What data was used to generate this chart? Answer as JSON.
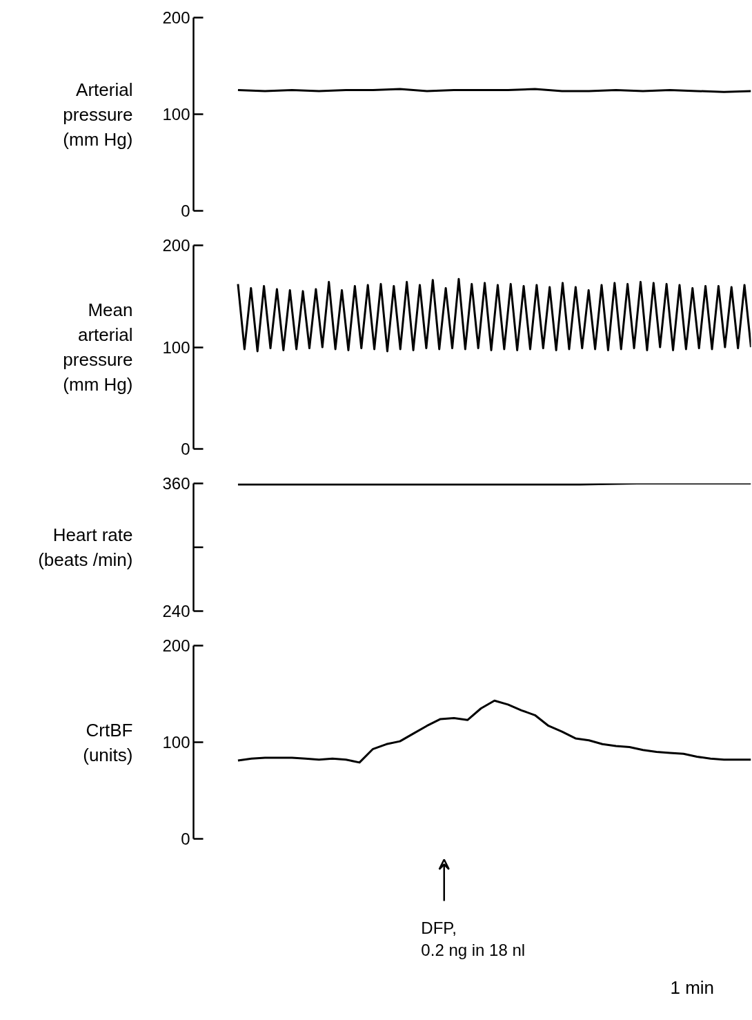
{
  "chart_data": [
    {
      "type": "line",
      "ylabel": "Arterial\npressure\n(mm Hg)",
      "categories": [
        null,
        null,
        null,
        null,
        null,
        null,
        null,
        null,
        null,
        null,
        null,
        null,
        null,
        null,
        null,
        null,
        null,
        null,
        null,
        null
      ],
      "series": [
        {
          "color": "#000000",
          "values": [
            125,
            124,
            125,
            124,
            125,
            125,
            126,
            124,
            125,
            125,
            125,
            126,
            124,
            124,
            125,
            124,
            125,
            124,
            123,
            124
          ]
        }
      ],
      "ylim": [
        0,
        200
      ],
      "yticks": [
        0,
        100,
        200
      ],
      "tick_labels": "y",
      "grid": false,
      "marker": "none",
      "line_style": "solid"
    },
    {
      "type": "line",
      "ylabel": "Mean\narterial\npressure\n(mm Hg)",
      "categories": [
        null,
        null,
        null,
        null,
        null,
        null,
        null,
        null,
        null,
        null,
        null,
        null,
        null,
        null,
        null,
        null,
        null,
        null,
        null,
        null,
        null,
        null,
        null,
        null,
        null,
        null,
        null,
        null,
        null,
        null,
        null,
        null,
        null,
        null,
        null,
        null,
        null,
        null,
        null,
        null,
        null,
        null,
        null,
        null,
        null,
        null,
        null,
        null,
        null,
        null,
        null,
        null,
        null,
        null,
        null,
        null,
        null,
        null,
        null,
        null,
        null,
        null,
        null,
        null,
        null,
        null,
        null,
        null,
        null,
        null,
        null,
        null,
        null,
        null,
        null,
        null,
        null,
        null,
        null,
        null
      ],
      "series": [
        {
          "color": "#000000",
          "values": [
            162,
            98,
            158,
            96,
            160,
            99,
            157,
            97,
            156,
            98,
            155,
            99,
            157,
            100,
            164,
            98,
            156,
            97,
            160,
            99,
            161,
            98,
            162,
            96,
            160,
            98,
            164,
            97,
            161,
            99,
            166,
            98,
            158,
            99,
            167,
            98,
            162,
            99,
            163,
            97,
            161,
            98,
            162,
            97,
            160,
            98,
            161,
            99,
            159,
            97,
            163,
            98,
            159,
            99,
            156,
            98,
            161,
            97,
            163,
            98,
            162,
            99,
            164,
            97,
            163,
            100,
            162,
            97,
            161,
            98,
            158,
            99,
            160,
            98,
            160,
            100,
            159,
            99,
            161,
            100
          ]
        }
      ],
      "ylim": [
        0,
        200
      ],
      "yticks": [
        0,
        100,
        200
      ],
      "tick_labels": "y",
      "grid": false,
      "marker": "none",
      "line_style": "solid"
    },
    {
      "type": "line",
      "ylabel": "Heart rate\n(beats /min)",
      "categories": [
        null,
        null,
        null,
        null,
        null,
        null,
        null,
        null,
        null,
        null
      ],
      "series": [
        {
          "color": "#000000",
          "values": [
            359,
            359,
            359,
            359,
            359,
            359,
            359,
            360,
            360,
            360
          ]
        }
      ],
      "ylim": [
        240,
        360
      ],
      "yticks": [
        240,
        {
          "value": 300,
          "label": null
        },
        360
      ],
      "tick_labels": "y",
      "grid": false,
      "marker": "none",
      "line_style": "solid"
    },
    {
      "type": "line",
      "ylabel": "CrtBF\n(units)",
      "categories": [
        null,
        null,
        null,
        null,
        null,
        null,
        null,
        null,
        null,
        null,
        null,
        null,
        null,
        null,
        null,
        null,
        null,
        null,
        null,
        null,
        null,
        null,
        null,
        null,
        null,
        null,
        null,
        null,
        null,
        null,
        null,
        null,
        null,
        null,
        null,
        null,
        null,
        null,
        null
      ],
      "series": [
        {
          "color": "#000000",
          "values": [
            81,
            83,
            84,
            84,
            84,
            83,
            82,
            83,
            82,
            79,
            93,
            98,
            101,
            109,
            117,
            124,
            125,
            123,
            135,
            143,
            139,
            133,
            128,
            117,
            111,
            104,
            102,
            98,
            96,
            95,
            92,
            90,
            89,
            88,
            85,
            83,
            82,
            82,
            82
          ]
        }
      ],
      "ylim": [
        0,
        200
      ],
      "yticks": [
        0,
        100,
        200
      ],
      "tick_labels": "y",
      "grid": false,
      "marker": "none",
      "line_style": "solid",
      "annotations": [
        "DFP,\n0.2 ng in 18 nl",
        "1 min"
      ]
    }
  ]
}
